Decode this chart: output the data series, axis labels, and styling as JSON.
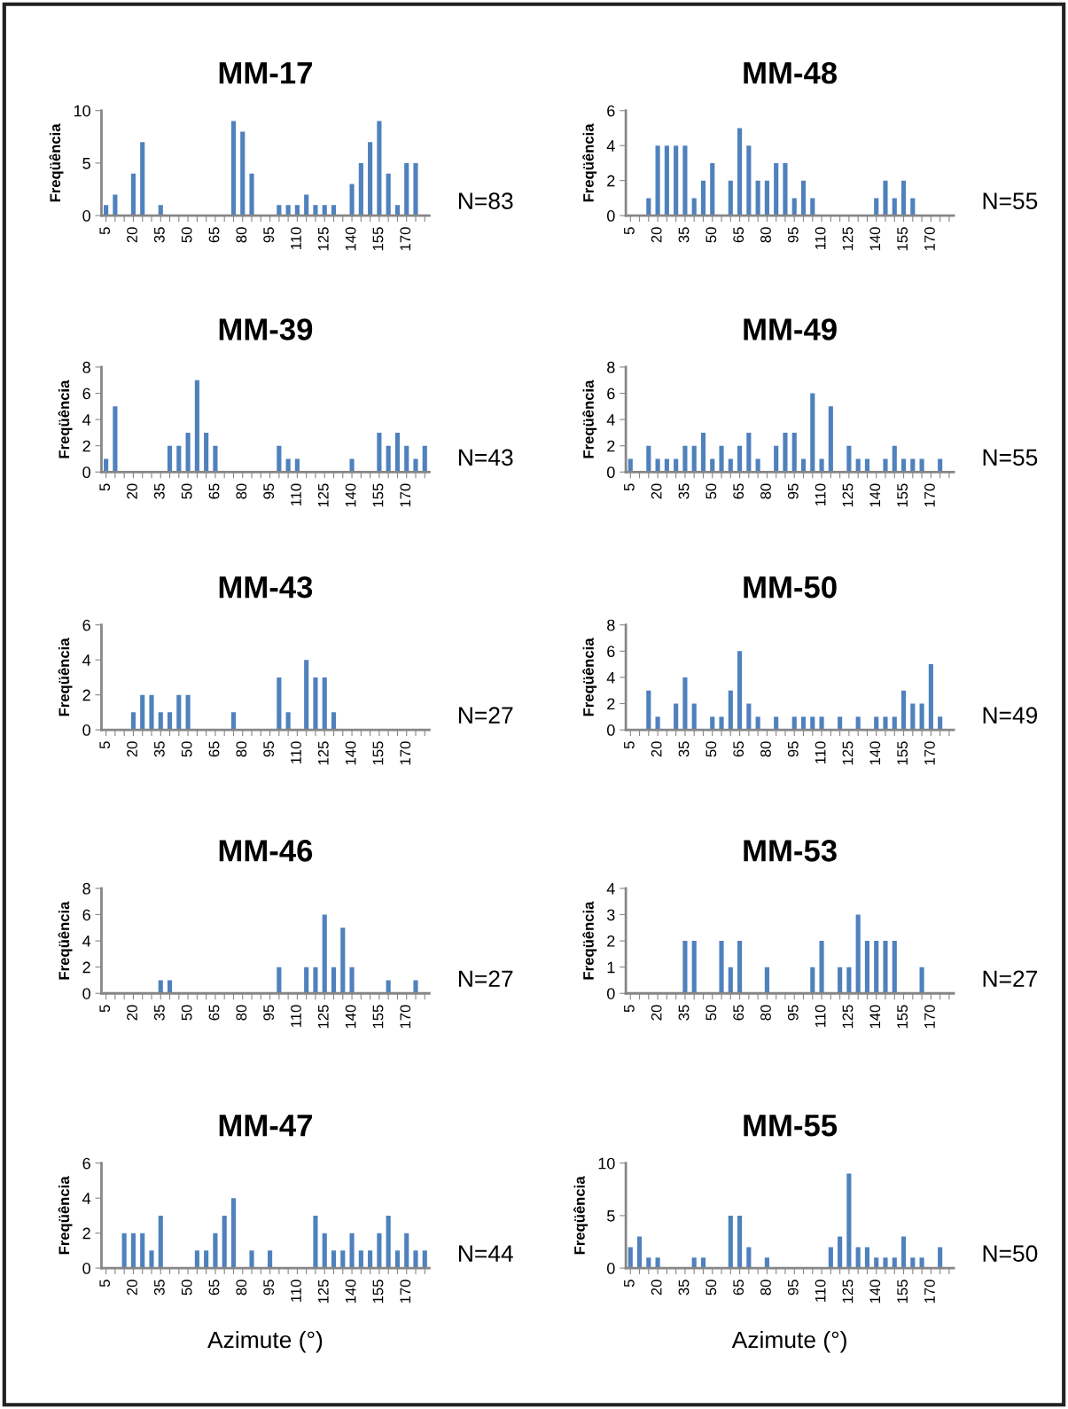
{
  "chart_data": [
    {
      "type": "bar",
      "title": "MM-17",
      "ylabel": "Freqüência",
      "annotations": [
        "N=83"
      ],
      "color": "#4f81bd",
      "ylim": [
        0,
        10
      ],
      "yticks": [
        0,
        5,
        10
      ],
      "categories": [
        "5",
        null,
        null,
        "20",
        null,
        null,
        "35",
        null,
        null,
        "50",
        null,
        null,
        "65",
        null,
        null,
        "80",
        null,
        null,
        "95",
        null,
        null,
        "110",
        null,
        null,
        "125",
        null,
        null,
        "140",
        null,
        null,
        "155",
        null,
        null,
        "170",
        null,
        null
      ],
      "values": [
        1,
        2,
        null,
        4,
        7,
        null,
        1,
        null,
        null,
        null,
        null,
        null,
        null,
        null,
        9,
        8,
        4,
        null,
        null,
        1,
        1,
        1,
        2,
        1,
        1,
        1,
        null,
        3,
        5,
        7,
        9,
        4,
        1,
        5,
        5,
        null
      ]
    },
    {
      "type": "bar",
      "title": "MM-48",
      "ylabel": "Freqüência",
      "annotations": [
        "N=55"
      ],
      "color": "#4f81bd",
      "ylim": [
        0,
        6
      ],
      "yticks": [
        0,
        2,
        4,
        6
      ],
      "categories": [
        "5",
        null,
        null,
        "20",
        null,
        null,
        "35",
        null,
        null,
        "50",
        null,
        null,
        "65",
        null,
        null,
        "80",
        null,
        null,
        "95",
        null,
        null,
        "110",
        null,
        null,
        "125",
        null,
        null,
        "140",
        null,
        null,
        "155",
        null,
        null,
        "170",
        null,
        null
      ],
      "values": [
        null,
        null,
        1,
        4,
        4,
        4,
        4,
        1,
        2,
        3,
        null,
        2,
        5,
        4,
        2,
        2,
        3,
        3,
        1,
        2,
        1,
        null,
        null,
        null,
        null,
        null,
        null,
        1,
        2,
        1,
        2,
        1,
        null,
        null,
        null,
        null
      ]
    },
    {
      "type": "bar",
      "title": "MM-39",
      "ylabel": "Freqüência",
      "annotations": [
        "N=43"
      ],
      "color": "#4f81bd",
      "ylim": [
        0,
        8
      ],
      "yticks": [
        0,
        2,
        4,
        6,
        8
      ],
      "categories": [
        "5",
        null,
        null,
        "20",
        null,
        null,
        "35",
        null,
        null,
        "50",
        null,
        null,
        "65",
        null,
        null,
        "80",
        null,
        null,
        "95",
        null,
        null,
        "110",
        null,
        null,
        "125",
        null,
        null,
        "140",
        null,
        null,
        "155",
        null,
        null,
        "170",
        null,
        null
      ],
      "values": [
        1,
        5,
        null,
        null,
        null,
        null,
        null,
        2,
        2,
        3,
        7,
        3,
        2,
        null,
        null,
        null,
        null,
        null,
        null,
        2,
        1,
        1,
        null,
        null,
        null,
        null,
        null,
        1,
        null,
        null,
        3,
        2,
        3,
        2,
        1,
        2
      ]
    },
    {
      "type": "bar",
      "title": "MM-49",
      "ylabel": "Freqüência",
      "annotations": [
        "N=55"
      ],
      "color": "#4f81bd",
      "ylim": [
        0,
        8
      ],
      "yticks": [
        0,
        2,
        4,
        6,
        8
      ],
      "categories": [
        "5",
        null,
        null,
        "20",
        null,
        null,
        "35",
        null,
        null,
        "50",
        null,
        null,
        "65",
        null,
        null,
        "80",
        null,
        null,
        "95",
        null,
        null,
        "110",
        null,
        null,
        "125",
        null,
        null,
        "140",
        null,
        null,
        "155",
        null,
        null,
        "170",
        null,
        null
      ],
      "values": [
        1,
        null,
        2,
        1,
        1,
        1,
        2,
        2,
        3,
        1,
        2,
        1,
        2,
        3,
        1,
        null,
        2,
        3,
        3,
        1,
        6,
        1,
        5,
        null,
        2,
        1,
        1,
        null,
        1,
        2,
        1,
        1,
        1,
        null,
        1,
        null
      ]
    },
    {
      "type": "bar",
      "title": "MM-43",
      "ylabel": "Freqüência",
      "annotations": [
        "N=27"
      ],
      "color": "#4f81bd",
      "ylim": [
        0,
        6
      ],
      "yticks": [
        0,
        2,
        4,
        6
      ],
      "categories": [
        "5",
        null,
        null,
        "20",
        null,
        null,
        "35",
        null,
        null,
        "50",
        null,
        null,
        "65",
        null,
        null,
        "80",
        null,
        null,
        "95",
        null,
        null,
        "110",
        null,
        null,
        "125",
        null,
        null,
        "140",
        null,
        null,
        "155",
        null,
        null,
        "170",
        null,
        null
      ],
      "values": [
        null,
        null,
        null,
        1,
        2,
        2,
        1,
        1,
        2,
        2,
        null,
        null,
        null,
        null,
        1,
        null,
        null,
        null,
        null,
        3,
        1,
        null,
        4,
        3,
        3,
        1,
        null,
        null,
        null,
        null,
        null,
        null,
        null,
        null,
        null,
        null
      ]
    },
    {
      "type": "bar",
      "title": "MM-50",
      "ylabel": "Freqüência",
      "annotations": [
        "N=49"
      ],
      "color": "#4f81bd",
      "ylim": [
        0,
        8
      ],
      "yticks": [
        0,
        2,
        4,
        6,
        8
      ],
      "categories": [
        "5",
        null,
        null,
        "20",
        null,
        null,
        "35",
        null,
        null,
        "50",
        null,
        null,
        "65",
        null,
        null,
        "80",
        null,
        null,
        "95",
        null,
        null,
        "110",
        null,
        null,
        "125",
        null,
        null,
        "140",
        null,
        null,
        "155",
        null,
        null,
        "170",
        null,
        null
      ],
      "values": [
        null,
        null,
        3,
        1,
        null,
        2,
        4,
        2,
        null,
        1,
        1,
        3,
        6,
        2,
        1,
        null,
        1,
        null,
        1,
        1,
        1,
        1,
        null,
        1,
        null,
        1,
        null,
        1,
        1,
        1,
        3,
        2,
        2,
        5,
        1,
        null
      ]
    },
    {
      "type": "bar",
      "title": "MM-46",
      "ylabel": "Freqüência",
      "annotations": [
        "N=27"
      ],
      "color": "#4f81bd",
      "ylim": [
        0,
        8
      ],
      "yticks": [
        0,
        2,
        4,
        6,
        8
      ],
      "categories": [
        "5",
        null,
        null,
        "20",
        null,
        null,
        "35",
        null,
        null,
        "50",
        null,
        null,
        "65",
        null,
        null,
        "80",
        null,
        null,
        "95",
        null,
        null,
        "110",
        null,
        null,
        "125",
        null,
        null,
        "140",
        null,
        null,
        "155",
        null,
        null,
        "170",
        null,
        null
      ],
      "values": [
        null,
        null,
        null,
        null,
        null,
        null,
        1,
        1,
        null,
        null,
        null,
        null,
        null,
        null,
        null,
        null,
        null,
        null,
        null,
        2,
        null,
        null,
        2,
        2,
        6,
        2,
        5,
        2,
        null,
        null,
        null,
        1,
        null,
        null,
        1,
        null
      ]
    },
    {
      "type": "bar",
      "title": "MM-53",
      "ylabel": "Freqüência",
      "annotations": [
        "N=27"
      ],
      "color": "#4f81bd",
      "ylim": [
        0,
        4
      ],
      "yticks": [
        0,
        1,
        2,
        3,
        4
      ],
      "categories": [
        "5",
        null,
        null,
        "20",
        null,
        null,
        "35",
        null,
        null,
        "50",
        null,
        null,
        "65",
        null,
        null,
        "80",
        null,
        null,
        "95",
        null,
        null,
        "110",
        null,
        null,
        "125",
        null,
        null,
        "140",
        null,
        null,
        "155",
        null,
        null,
        "170",
        null,
        null
      ],
      "values": [
        null,
        null,
        null,
        null,
        null,
        null,
        2,
        2,
        null,
        null,
        2,
        1,
        2,
        null,
        null,
        1,
        null,
        null,
        null,
        null,
        1,
        2,
        null,
        1,
        1,
        3,
        2,
        2,
        2,
        2,
        null,
        null,
        1,
        null,
        null,
        null
      ]
    },
    {
      "type": "bar",
      "title": "MM-47",
      "ylabel": "Freqüência",
      "xlabel": "Azimute (°)",
      "annotations": [
        "N=44"
      ],
      "color": "#4f81bd",
      "ylim": [
        0,
        6
      ],
      "yticks": [
        0,
        2,
        4,
        6
      ],
      "categories": [
        "5",
        null,
        null,
        "20",
        null,
        null,
        "35",
        null,
        null,
        "50",
        null,
        null,
        "65",
        null,
        null,
        "80",
        null,
        null,
        "95",
        null,
        null,
        "110",
        null,
        null,
        "125",
        null,
        null,
        "140",
        null,
        null,
        "155",
        null,
        null,
        "170",
        null,
        null
      ],
      "values": [
        null,
        null,
        2,
        2,
        2,
        1,
        3,
        null,
        null,
        null,
        1,
        1,
        2,
        3,
        4,
        null,
        1,
        null,
        1,
        null,
        null,
        null,
        null,
        3,
        2,
        1,
        1,
        2,
        1,
        1,
        2,
        3,
        1,
        2,
        1,
        1
      ]
    },
    {
      "type": "bar",
      "title": "MM-55",
      "ylabel": "Freqüência",
      "xlabel": "Azimute (°)",
      "annotations": [
        "N=50"
      ],
      "color": "#4f81bd",
      "ylim": [
        0,
        10
      ],
      "yticks": [
        0,
        5,
        10
      ],
      "categories": [
        "5",
        null,
        null,
        "20",
        null,
        null,
        "35",
        null,
        null,
        "50",
        null,
        null,
        "65",
        null,
        null,
        "80",
        null,
        null,
        "95",
        null,
        null,
        "110",
        null,
        null,
        "125",
        null,
        null,
        "140",
        null,
        null,
        "155",
        null,
        null,
        "170",
        null,
        null
      ],
      "values": [
        2,
        3,
        1,
        1,
        null,
        null,
        null,
        1,
        1,
        null,
        null,
        5,
        5,
        2,
        null,
        1,
        null,
        null,
        null,
        null,
        null,
        null,
        2,
        3,
        9,
        2,
        2,
        1,
        1,
        1,
        3,
        1,
        1,
        null,
        2,
        null
      ]
    }
  ]
}
